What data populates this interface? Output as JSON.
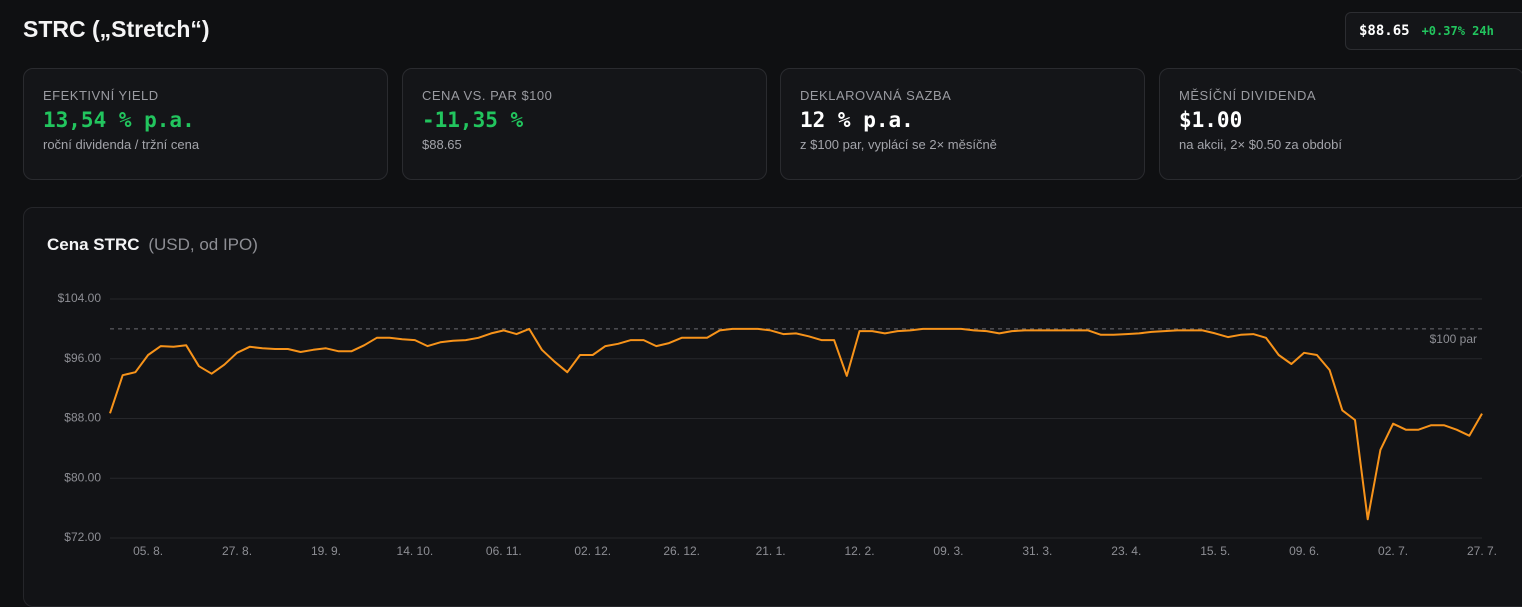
{
  "header": {
    "title": "STRC („Stretch“)",
    "price": "$88.65",
    "change": "+0.37% 24h"
  },
  "cards": [
    {
      "label": "EFEKTIVNÍ YIELD",
      "value": "13,54 % p.a.",
      "note": "roční dividenda / tržní cena"
    },
    {
      "label": "CENA VS. PAR $100",
      "value": "-11,35 %",
      "note": "$88.65"
    },
    {
      "label": "DEKLAROVANÁ SAZBA",
      "value": "12 % p.a.",
      "note": "z $100 par, vyplácí se 2× měsíčně"
    },
    {
      "label": "MĚSÍČNÍ DIVIDENDA",
      "value": "$1.00",
      "note": "na akcii, 2× $0.50 za období"
    }
  ],
  "chart_data": {
    "type": "line",
    "title": "Cena STRC",
    "subtitle": "(USD, od IPO)",
    "color": "#f7931a",
    "grid": true,
    "categories": [
      null,
      null,
      null,
      "05. 8.",
      null,
      null,
      null,
      null,
      null,
      null,
      "27. 8.",
      null,
      null,
      null,
      null,
      null,
      null,
      "19. 9.",
      null,
      null,
      null,
      null,
      null,
      null,
      "14. 10.",
      null,
      null,
      null,
      null,
      null,
      null,
      "06. 11.",
      null,
      null,
      null,
      null,
      null,
      null,
      "02. 12.",
      null,
      null,
      null,
      null,
      null,
      null,
      "26. 12.",
      null,
      null,
      null,
      null,
      null,
      null,
      "21. 1.",
      null,
      null,
      null,
      null,
      null,
      null,
      "12. 2.",
      null,
      null,
      null,
      null,
      null,
      null,
      "09. 3.",
      null,
      null,
      null,
      null,
      null,
      null,
      "31. 3.",
      null,
      null,
      null,
      null,
      null,
      null,
      "23. 4.",
      null,
      null,
      null,
      null,
      null,
      null,
      "15. 5.",
      null,
      null,
      null,
      null,
      null,
      null,
      "09. 6.",
      null,
      null,
      null,
      null,
      null,
      null,
      "02. 7.",
      null,
      null,
      null,
      null,
      null,
      null,
      "27. 7."
    ],
    "values": [
      88.7,
      93.8,
      94.2,
      96.5,
      97.7,
      97.6,
      97.8,
      95.0,
      94.0,
      95.2,
      96.8,
      97.6,
      97.4,
      97.3,
      97.3,
      96.9,
      97.2,
      97.4,
      97.0,
      97.0,
      97.8,
      98.8,
      98.8,
      98.6,
      98.5,
      97.7,
      98.2,
      98.4,
      98.5,
      98.8,
      99.4,
      99.8,
      99.3,
      100.0,
      97.2,
      95.6,
      94.2,
      96.5,
      96.5,
      97.7,
      98.0,
      98.5,
      98.5,
      97.7,
      98.1,
      98.8,
      98.8,
      98.8,
      99.8,
      100.0,
      100.0,
      100.0,
      99.8,
      99.3,
      99.4,
      99.0,
      98.5,
      98.5,
      93.7,
      99.7,
      99.7,
      99.4,
      99.7,
      99.8,
      100.0,
      100.0,
      100.0,
      100.0,
      99.8,
      99.7,
      99.4,
      99.7,
      99.8,
      99.8,
      99.8,
      99.8,
      99.8,
      99.8,
      99.2,
      99.2,
      99.3,
      99.4,
      99.6,
      99.7,
      99.8,
      99.8,
      99.8,
      99.4,
      98.9,
      99.2,
      99.3,
      98.8,
      96.5,
      95.3,
      96.8,
      96.5,
      94.5,
      89.1,
      87.8,
      74.5,
      83.8,
      87.3,
      86.5,
      86.5,
      87.1,
      87.1,
      86.5,
      85.7,
      88.65
    ],
    "ylim": [
      72,
      104
    ],
    "yticks": [
      {
        "value": 72,
        "label": "$72.00"
      },
      {
        "value": 80,
        "label": "$80.00"
      },
      {
        "value": 88,
        "label": "$88.00"
      },
      {
        "value": 96,
        "label": "$96.00"
      },
      {
        "value": 104,
        "label": "$104.00"
      }
    ],
    "reference_line": {
      "value": 100,
      "label": "$100 par"
    }
  }
}
